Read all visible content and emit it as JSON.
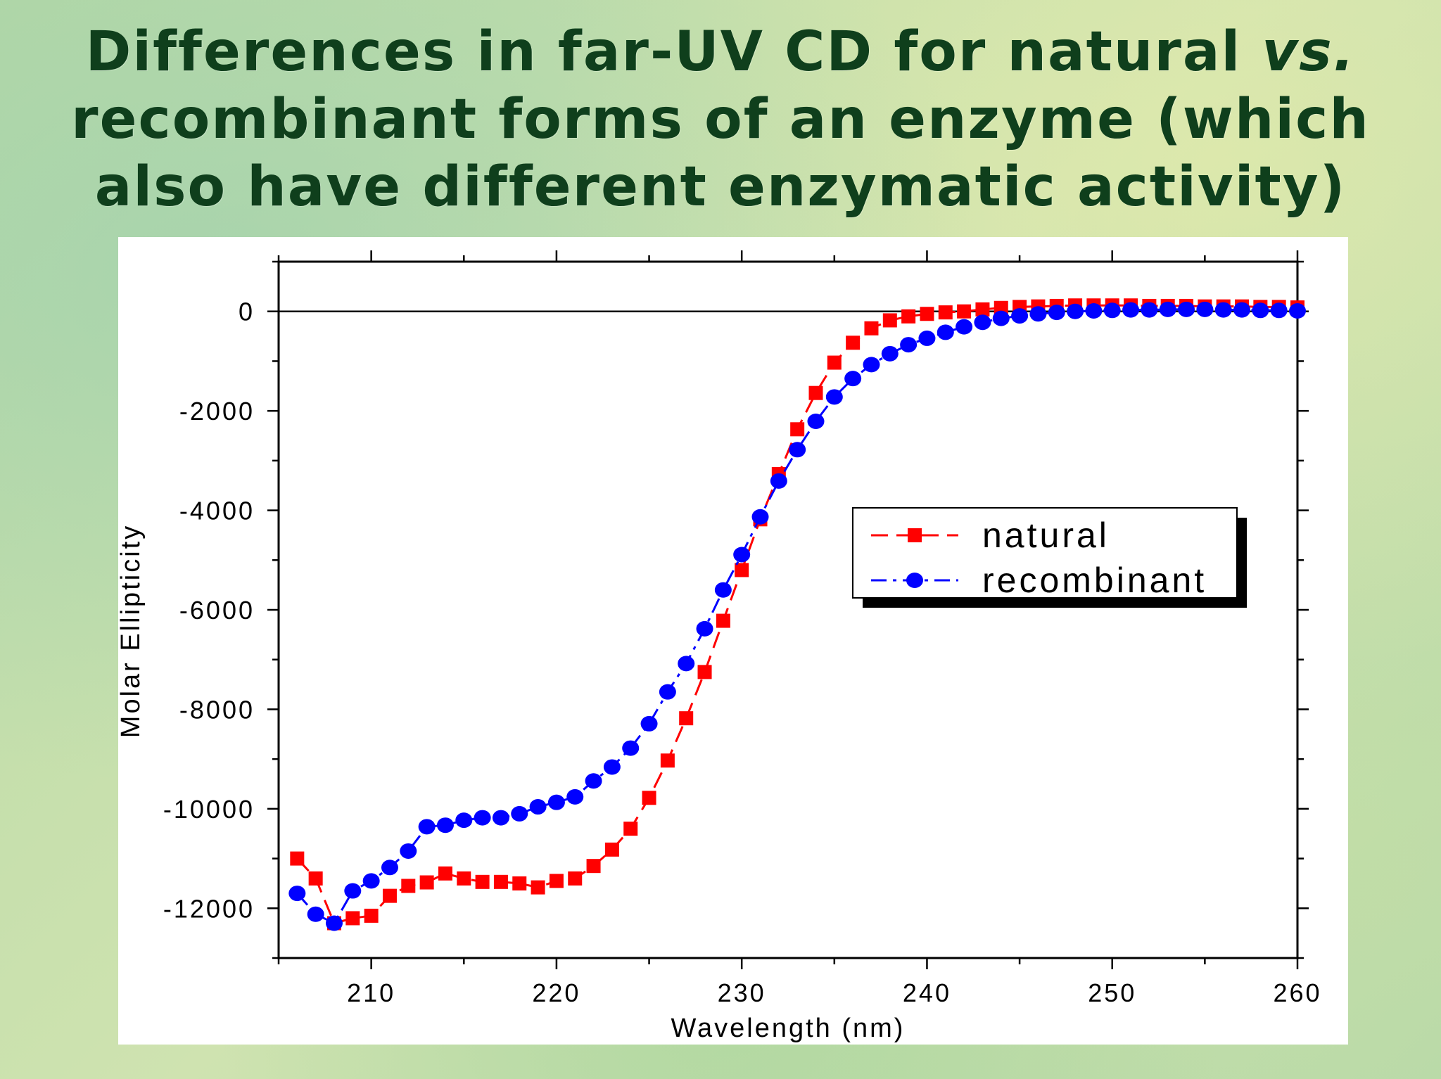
{
  "title": {
    "line1_a": "Differences in far-UV CD for natural ",
    "line1_b": "vs.",
    "line2": "recombinant forms of an enzyme (which",
    "line3": "also have different enzymatic activity)"
  },
  "chart_data": {
    "type": "scatter",
    "xlabel": "Wavelength (nm)",
    "ylabel": "Molar Ellipticity",
    "xlim": [
      205,
      260
    ],
    "ylim": [
      -13000,
      1000
    ],
    "x_ticks": [
      210,
      220,
      230,
      240,
      250,
      260
    ],
    "y_ticks": [
      0,
      -2000,
      -4000,
      -6000,
      -8000,
      -10000,
      -12000
    ],
    "legend_position": "center-right",
    "grid": false,
    "zero_line": true,
    "series": [
      {
        "name": "natural",
        "color": "#ff0000",
        "marker": "square",
        "line": "dashed",
        "x": [
          206,
          207,
          208,
          209,
          210,
          211,
          212,
          213,
          214,
          215,
          216,
          217,
          218,
          219,
          220,
          221,
          222,
          223,
          224,
          225,
          226,
          227,
          228,
          229,
          230,
          231,
          232,
          233,
          234,
          235,
          236,
          237,
          238,
          239,
          240,
          241,
          242,
          243,
          244,
          245,
          246,
          247,
          248,
          249,
          250,
          251,
          252,
          253,
          254,
          255,
          256,
          257,
          258,
          259,
          260
        ],
        "y": [
          -11000,
          -11400,
          -12300,
          -12200,
          -12150,
          -11750,
          -11550,
          -11480,
          -11300,
          -11400,
          -11470,
          -11470,
          -11500,
          -11580,
          -11450,
          -11400,
          -11150,
          -10820,
          -10400,
          -9780,
          -9030,
          -8180,
          -7250,
          -6220,
          -5200,
          -4180,
          -3270,
          -2370,
          -1640,
          -1030,
          -630,
          -340,
          -180,
          -100,
          -50,
          -20,
          0,
          40,
          70,
          90,
          100,
          110,
          120,
          120,
          120,
          120,
          110,
          110,
          110,
          100,
          100,
          100,
          90,
          90,
          80
        ]
      },
      {
        "name": "recombinant",
        "color": "#0000ff",
        "marker": "circle",
        "line": "dash-dot",
        "x": [
          206,
          207,
          208,
          209,
          210,
          211,
          212,
          213,
          214,
          215,
          216,
          217,
          218,
          219,
          220,
          221,
          222,
          223,
          224,
          225,
          226,
          227,
          228,
          229,
          230,
          231,
          232,
          233,
          234,
          235,
          236,
          237,
          238,
          239,
          240,
          241,
          242,
          243,
          244,
          245,
          246,
          247,
          248,
          249,
          250,
          251,
          252,
          253,
          254,
          255,
          256,
          257,
          258,
          259,
          260
        ],
        "y": [
          -11700,
          -12120,
          -12300,
          -11650,
          -11450,
          -11180,
          -10850,
          -10360,
          -10330,
          -10230,
          -10180,
          -10180,
          -10100,
          -9960,
          -9870,
          -9760,
          -9440,
          -9160,
          -8780,
          -8290,
          -7650,
          -7080,
          -6380,
          -5600,
          -4890,
          -4130,
          -3410,
          -2780,
          -2210,
          -1720,
          -1350,
          -1070,
          -850,
          -670,
          -540,
          -420,
          -310,
          -220,
          -140,
          -90,
          -50,
          -20,
          0,
          10,
          20,
          30,
          30,
          40,
          40,
          40,
          30,
          30,
          20,
          20,
          10
        ]
      }
    ]
  }
}
